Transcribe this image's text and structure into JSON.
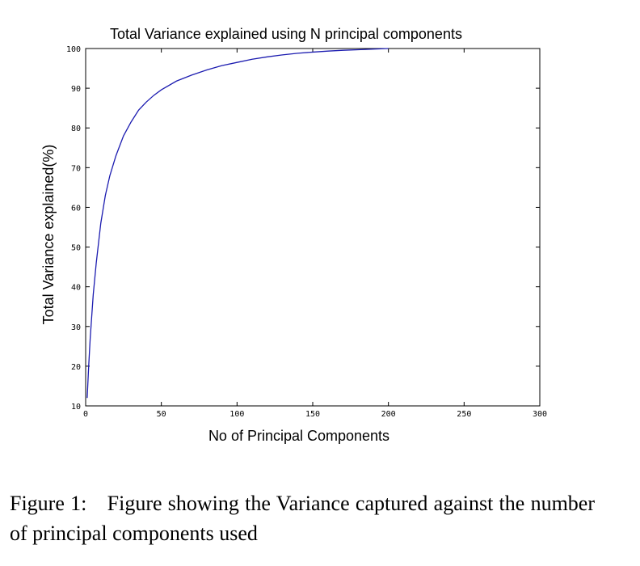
{
  "chart_data": {
    "type": "line",
    "title": "Total Variance explained using N principal components",
    "xlabel": "No of Principal Components",
    "ylabel": "Total Variance explained(%)",
    "xlim": [
      0,
      300
    ],
    "ylim": [
      10,
      100
    ],
    "xticks": [
      0,
      50,
      100,
      150,
      200,
      250,
      300
    ],
    "yticks": [
      10,
      20,
      30,
      40,
      50,
      60,
      70,
      80,
      90,
      100
    ],
    "grid": false,
    "legend": "none",
    "line_color": "#1c1cb0",
    "series": [
      {
        "x": [
          1,
          2,
          3,
          5,
          7,
          10,
          13,
          16,
          20,
          25,
          30,
          35,
          40,
          45,
          50,
          60,
          70,
          80,
          90,
          100,
          110,
          120,
          130,
          140,
          150,
          160,
          170,
          180,
          190,
          200
        ],
        "y": [
          12,
          20,
          27,
          38,
          46,
          56,
          63,
          68,
          73,
          78,
          81.5,
          84.5,
          86.5,
          88.2,
          89.6,
          91.8,
          93.3,
          94.6,
          95.7,
          96.5,
          97.3,
          97.9,
          98.4,
          98.8,
          99.1,
          99.35,
          99.55,
          99.7,
          99.85,
          100
        ]
      }
    ]
  },
  "caption": {
    "number": "Figure 1:",
    "text": "Figure showing the Variance captured against the number of principal components used"
  }
}
